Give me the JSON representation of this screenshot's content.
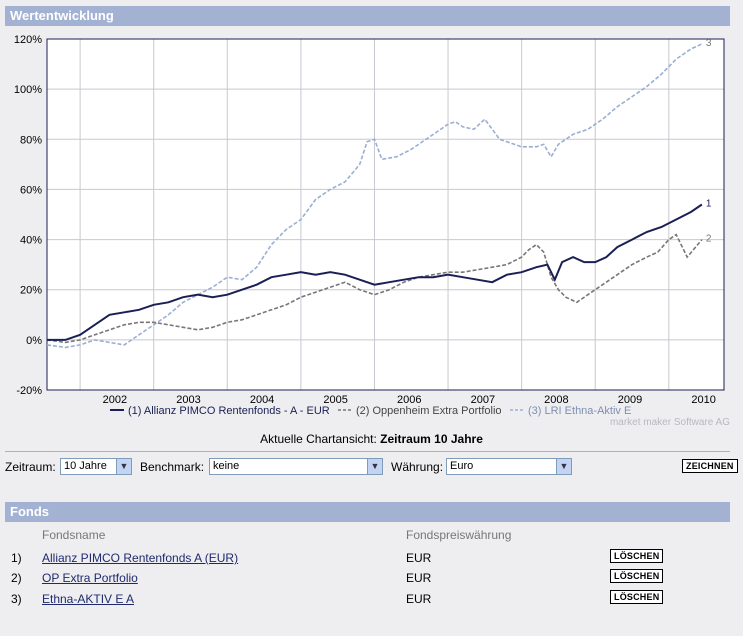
{
  "header": {
    "title": "Wertentwicklung"
  },
  "chart_data": {
    "type": "line",
    "title": "",
    "xlabel": "",
    "ylabel": "",
    "x_ticks": [
      "2002",
      "2003",
      "2004",
      "2005",
      "2006",
      "2007",
      "2008",
      "2009",
      "2010"
    ],
    "y_ticks": [
      "120%",
      "100%",
      "80%",
      "60%",
      "40%",
      "20%",
      "0%",
      "-20%"
    ],
    "ylim": [
      -20,
      120
    ],
    "xlim": [
      2001.55,
      2010.75
    ],
    "grid": true,
    "legend_position": "bottom",
    "watermark": "market maker Software AG",
    "series": [
      {
        "name": "(1)  Allianz PIMCO Rentenfonds - A - EUR",
        "end_label": "1",
        "color": "#1a1f55",
        "style": "solid",
        "x": [
          2001.55,
          2001.8,
          2002.0,
          2002.2,
          2002.4,
          2002.6,
          2002.8,
          2003.0,
          2003.2,
          2003.4,
          2003.6,
          2003.8,
          2004.0,
          2004.2,
          2004.4,
          2004.6,
          2004.8,
          2005.0,
          2005.2,
          2005.4,
          2005.6,
          2005.8,
          2006.0,
          2006.2,
          2006.4,
          2006.6,
          2006.8,
          2007.0,
          2007.2,
          2007.4,
          2007.6,
          2007.8,
          2008.0,
          2008.2,
          2008.35,
          2008.45,
          2008.55,
          2008.7,
          2008.85,
          2009.0,
          2009.15,
          2009.3,
          2009.5,
          2009.7,
          2009.9,
          2010.1,
          2010.3,
          2010.45
        ],
        "values": [
          0,
          0,
          2,
          6,
          10,
          11,
          12,
          14,
          15,
          17,
          18,
          17,
          18,
          20,
          22,
          25,
          26,
          27,
          26,
          27,
          26,
          24,
          22,
          23,
          24,
          25,
          25,
          26,
          25,
          24,
          23,
          26,
          27,
          29,
          30,
          24,
          31,
          33,
          31,
          31,
          33,
          37,
          40,
          43,
          45,
          48,
          51,
          54
        ]
      },
      {
        "name": "(2)  Oppenheim Extra Portfolio",
        "end_label": "2",
        "color": "#777777",
        "style": "dashed",
        "x": [
          2001.55,
          2001.8,
          2002.0,
          2002.2,
          2002.4,
          2002.6,
          2002.8,
          2003.0,
          2003.2,
          2003.4,
          2003.6,
          2003.8,
          2004.0,
          2004.2,
          2004.4,
          2004.6,
          2004.8,
          2005.0,
          2005.2,
          2005.4,
          2005.6,
          2005.8,
          2006.0,
          2006.2,
          2006.4,
          2006.6,
          2006.8,
          2007.0,
          2007.2,
          2007.4,
          2007.6,
          2007.8,
          2008.0,
          2008.1,
          2008.2,
          2008.3,
          2008.4,
          2008.5,
          2008.6,
          2008.75,
          2008.9,
          2009.1,
          2009.3,
          2009.5,
          2009.7,
          2009.85,
          2010.0,
          2010.1,
          2010.25,
          2010.45
        ],
        "values": [
          0,
          -1,
          0,
          2,
          4,
          6,
          7,
          7,
          6,
          5,
          4,
          5,
          7,
          8,
          10,
          12,
          14,
          17,
          19,
          21,
          23,
          20,
          18,
          20,
          23,
          25,
          26,
          27,
          27,
          28,
          29,
          30,
          33,
          36,
          38,
          35,
          25,
          20,
          17,
          15,
          18,
          22,
          26,
          30,
          33,
          35,
          40,
          42,
          33,
          40
        ]
      },
      {
        "name": "(3)  LRI Ethna-Aktiv E",
        "end_label": "3",
        "color": "#9aaed3",
        "style": "dashed",
        "x": [
          2001.55,
          2001.8,
          2002.0,
          2002.2,
          2002.4,
          2002.6,
          2002.8,
          2003.0,
          2003.2,
          2003.4,
          2003.6,
          2003.8,
          2004.0,
          2004.2,
          2004.4,
          2004.6,
          2004.8,
          2005.0,
          2005.2,
          2005.4,
          2005.6,
          2005.8,
          2005.9,
          2006.0,
          2006.1,
          2006.3,
          2006.5,
          2006.7,
          2006.9,
          2007.0,
          2007.1,
          2007.2,
          2007.35,
          2007.5,
          2007.7,
          2007.9,
          2008.0,
          2008.2,
          2008.3,
          2008.4,
          2008.5,
          2008.7,
          2008.9,
          2009.1,
          2009.3,
          2009.5,
          2009.7,
          2009.9,
          2010.1,
          2010.3,
          2010.45
        ],
        "values": [
          -2,
          -3,
          -2,
          0,
          -1,
          -2,
          2,
          6,
          10,
          15,
          18,
          21,
          25,
          24,
          29,
          38,
          44,
          48,
          56,
          60,
          63,
          70,
          79,
          80,
          72,
          73,
          76,
          80,
          84,
          86,
          87,
          85,
          84,
          88,
          80,
          78,
          77,
          77,
          78,
          73,
          78,
          82,
          84,
          88,
          93,
          97,
          101,
          106,
          112,
          116,
          118
        ]
      }
    ]
  },
  "caption": {
    "prefix": "Aktuelle Chartansicht: ",
    "value": "Zeitraum 10 Jahre"
  },
  "controls": {
    "zeitraum_label": "Zeitraum:",
    "zeitraum_value": "10 Jahre",
    "benchmark_label": "Benchmark:",
    "benchmark_value": "keine",
    "waehrung_label": "Währung:",
    "waehrung_value": "Euro",
    "draw_button": "ZEICHNEN",
    "dropdown_icon": "chevron-down-icon"
  },
  "fonds": {
    "title": "Fonds",
    "col_name": "Fondsname",
    "col_currency": "Fondspreiswährung",
    "delete_label": "LÖSCHEN",
    "rows": [
      {
        "num": "1)",
        "name": "Allianz PIMCO Rentenfonds A (EUR)",
        "currency": "EUR"
      },
      {
        "num": "2)",
        "name": "OP Extra Portfolio",
        "currency": "EUR"
      },
      {
        "num": "3)",
        "name": "Ethna-AKTIV E A",
        "currency": "EUR"
      }
    ]
  }
}
